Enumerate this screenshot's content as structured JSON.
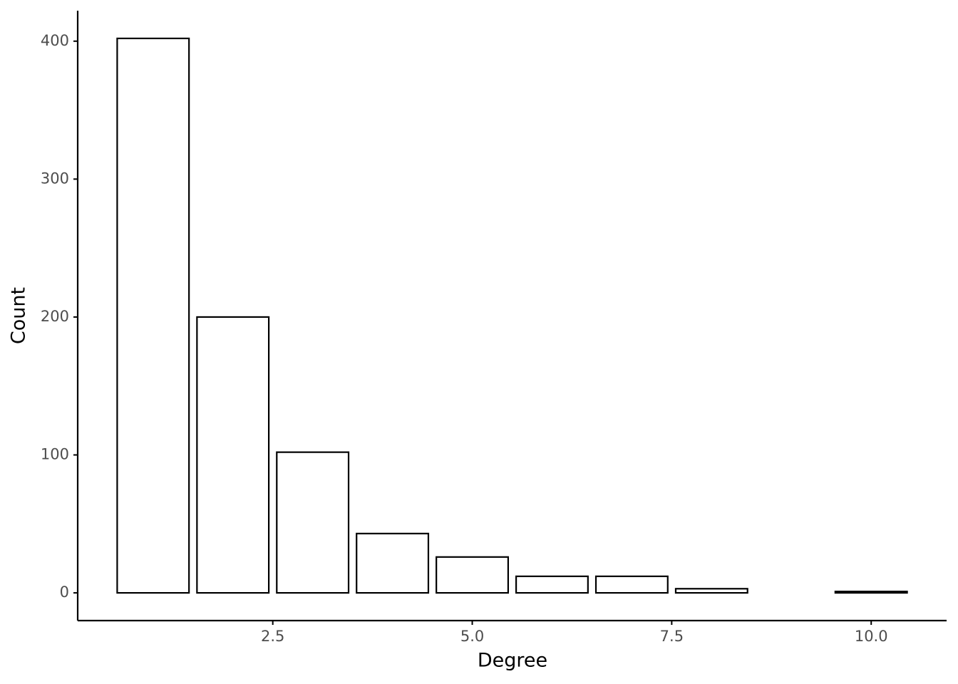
{
  "chart_data": {
    "type": "bar",
    "x_label": "Degree",
    "y_label": "Count",
    "x": [
      1,
      2,
      3,
      4,
      5,
      6,
      7,
      8,
      10
    ],
    "values": [
      402,
      200,
      102,
      43,
      26,
      12,
      12,
      3,
      1
    ],
    "color": "#ffffff",
    "edge_color": "#000000",
    "xlim": [
      0.055,
      10.945
    ],
    "xticks": [
      2.5,
      {
        "value": 5,
        "label": "5.0"
      },
      7.5,
      {
        "value": 10,
        "label": "10.0"
      }
    ],
    "ylim": [
      -20.1,
      422.1
    ],
    "yticks": [
      0,
      100,
      200,
      300,
      400
    ],
    "grid": false
  }
}
